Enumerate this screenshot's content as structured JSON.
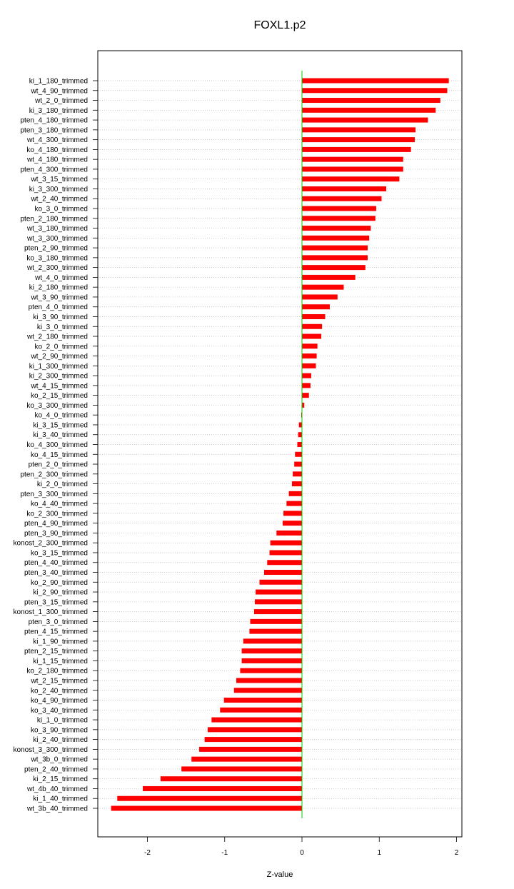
{
  "chart_data": {
    "type": "bar",
    "orientation": "horizontal",
    "title": "FOXL1.p2",
    "xlabel": "Z-value",
    "ylabel": "",
    "xlim": [
      -2.6,
      2.08
    ],
    "xticks": [
      -2,
      -1,
      0,
      1,
      2
    ],
    "grid": "dotted horizontal lines per category",
    "bar_color": "#ff0000",
    "zero_line_color": "#00cc00",
    "categories": [
      "ki_1_180_trimmed",
      "wt_4_90_trimmed",
      "wt_2_0_trimmed",
      "ki_3_180_trimmed",
      "pten_4_180_trimmed",
      "pten_3_180_trimmed",
      "wt_4_300_trimmed",
      "ko_4_180_trimmed",
      "wt_4_180_trimmed",
      "pten_4_300_trimmed",
      "wt_3_15_trimmed",
      "ki_3_300_trimmed",
      "wt_2_40_trimmed",
      "ko_3_0_trimmed",
      "pten_2_180_trimmed",
      "wt_3_180_trimmed",
      "wt_3_300_trimmed",
      "pten_2_90_trimmed",
      "ko_3_180_trimmed",
      "wt_2_300_trimmed",
      "wt_4_0_trimmed",
      "ki_2_180_trimmed",
      "wt_3_90_trimmed",
      "pten_4_0_trimmed",
      "ki_3_90_trimmed",
      "ki_3_0_trimmed",
      "wt_2_180_trimmed",
      "ko_2_0_trimmed",
      "wt_2_90_trimmed",
      "ki_1_300_trimmed",
      "ki_2_300_trimmed",
      "wt_4_15_trimmed",
      "ko_2_15_trimmed",
      "ko_3_300_trimmed",
      "ko_4_0_trimmed",
      "ki_3_15_trimmed",
      "ki_3_40_trimmed",
      "ko_4_300_trimmed",
      "ko_4_15_trimmed",
      "pten_2_0_trimmed",
      "pten_2_300_trimmed",
      "ki_2_0_trimmed",
      "pten_3_300_trimmed",
      "ko_4_40_trimmed",
      "ko_2_300_trimmed",
      "pten_4_90_trimmed",
      "pten_3_90_trimmed",
      "konost_2_300_trimmed",
      "ko_3_15_trimmed",
      "pten_4_40_trimmed",
      "pten_3_40_trimmed",
      "ko_2_90_trimmed",
      "ki_2_90_trimmed",
      "pten_3_15_trimmed",
      "konost_1_300_trimmed",
      "pten_3_0_trimmed",
      "pten_4_15_trimmed",
      "ki_1_90_trimmed",
      "pten_2_15_trimmed",
      "ki_1_15_trimmed",
      "ko_2_180_trimmed",
      "wt_2_15_trimmed",
      "ko_2_40_trimmed",
      "ko_4_90_trimmed",
      "ko_3_40_trimmed",
      "ki_1_0_trimmed",
      "ko_3_90_trimmed",
      "ki_2_40_trimmed",
      "konost_3_300_trimmed",
      "wt_3b_0_trimmed",
      "pten_2_40_trimmed",
      "ki_2_15_trimmed",
      "wt_4b_40_trimmed",
      "ki_1_40_trimmed",
      "wt_3b_40_trimmed"
    ],
    "values": [
      1.9,
      1.88,
      1.79,
      1.73,
      1.63,
      1.47,
      1.46,
      1.41,
      1.31,
      1.31,
      1.26,
      1.09,
      1.03,
      0.96,
      0.95,
      0.89,
      0.87,
      0.85,
      0.85,
      0.82,
      0.69,
      0.54,
      0.46,
      0.36,
      0.3,
      0.26,
      0.25,
      0.2,
      0.19,
      0.18,
      0.12,
      0.11,
      0.09,
      0.03,
      -0.01,
      -0.04,
      -0.05,
      -0.06,
      -0.09,
      -0.1,
      -0.12,
      -0.13,
      -0.17,
      -0.2,
      -0.24,
      -0.25,
      -0.33,
      -0.41,
      -0.42,
      -0.45,
      -0.49,
      -0.55,
      -0.6,
      -0.61,
      -0.62,
      -0.67,
      -0.68,
      -0.76,
      -0.78,
      -0.78,
      -0.8,
      -0.85,
      -0.88,
      -1.01,
      -1.06,
      -1.17,
      -1.22,
      -1.26,
      -1.33,
      -1.43,
      -1.56,
      -1.83,
      -2.06,
      -2.39,
      -2.47
    ]
  }
}
